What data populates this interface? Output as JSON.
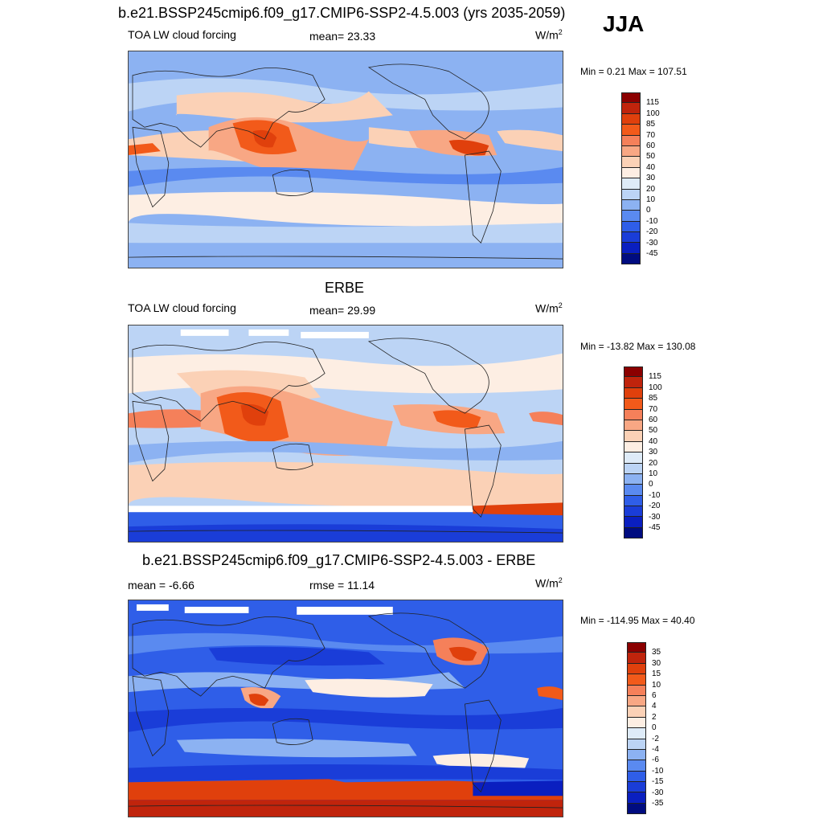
{
  "season": "JJA",
  "panels": [
    {
      "title": "b.e21.BSSP245cmip6.f09_g17.CMIP6-SSP2-4.5.003 (yrs 2035-2059)",
      "left_label": "TOA LW cloud forcing",
      "stat_label": "mean=  23.33",
      "unit": "W/m",
      "unit_sup": "2",
      "minmax": "Min =   0.21 Max = 107.51",
      "levels": [
        "115",
        "100",
        "85",
        "70",
        "60",
        "50",
        "40",
        "30",
        "20",
        "10",
        "0",
        "-10",
        "-20",
        "-30",
        "-45"
      ],
      "colors": [
        "#8b0000",
        "#c0240c",
        "#e0400c",
        "#f25a1a",
        "#f5805a",
        "#f8a784",
        "#fbd1b6",
        "#fdeee3",
        "#deebf8",
        "#bcd4f5",
        "#8cb2f2",
        "#5a8af0",
        "#2f5ee8",
        "#1a3dd8",
        "#0a1fc0",
        "#000c80"
      ]
    },
    {
      "title": "ERBE",
      "left_label": "TOA LW cloud forcing",
      "stat_label": "mean=  29.99",
      "unit": "W/m",
      "unit_sup": "2",
      "minmax": "Min = -13.82 Max = 130.08",
      "levels": [
        "115",
        "100",
        "85",
        "70",
        "60",
        "50",
        "40",
        "30",
        "20",
        "10",
        "0",
        "-10",
        "-20",
        "-30",
        "-45"
      ],
      "colors": [
        "#8b0000",
        "#c0240c",
        "#e0400c",
        "#f25a1a",
        "#f5805a",
        "#f8a784",
        "#fbd1b6",
        "#fdeee3",
        "#deebf8",
        "#bcd4f5",
        "#8cb2f2",
        "#5a8af0",
        "#2f5ee8",
        "#1a3dd8",
        "#0a1fc0",
        "#000c80"
      ]
    },
    {
      "title": "b.e21.BSSP245cmip6.f09_g17.CMIP6-SSP2-4.5.003 - ERBE",
      "left_label": "mean =  -6.66",
      "stat_label": "rmse =  11.14",
      "unit": "W/m",
      "unit_sup": "2",
      "minmax": "Min = -114.95 Max =  40.40",
      "levels": [
        "35",
        "30",
        "15",
        "10",
        "6",
        "4",
        "2",
        "0",
        "-2",
        "-4",
        "-6",
        "-10",
        "-15",
        "-30",
        "-35"
      ],
      "colors": [
        "#8b0000",
        "#c0240c",
        "#e0400c",
        "#f25a1a",
        "#f5805a",
        "#f8a784",
        "#fbd1b6",
        "#fdeee3",
        "#deebf8",
        "#bcd4f5",
        "#8cb2f2",
        "#5a8af0",
        "#2f5ee8",
        "#1a3dd8",
        "#0a1fc0",
        "#000c80"
      ]
    }
  ]
}
